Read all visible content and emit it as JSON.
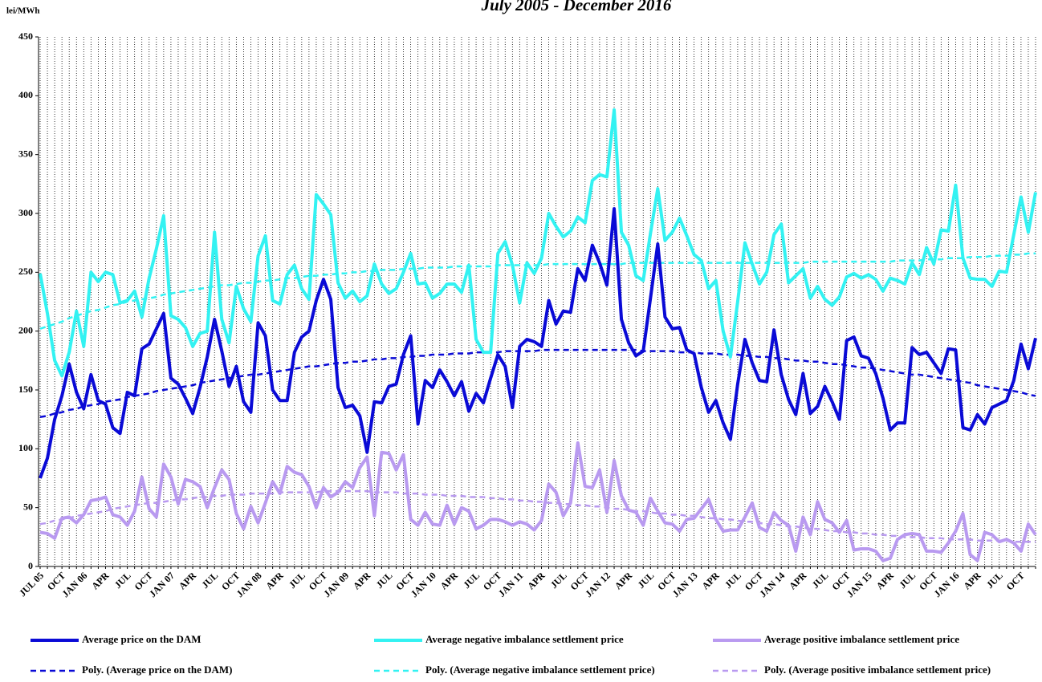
{
  "chart_data": {
    "type": "line",
    "title": "July 2005 - December 2016",
    "y_label": "lei/MWh",
    "categories": [
      "JUL 05",
      null,
      null,
      "OCT",
      null,
      null,
      "JAN 06",
      null,
      null,
      "APR",
      null,
      null,
      "JUL",
      null,
      null,
      "OCT",
      null,
      null,
      "JAN 07",
      null,
      null,
      "APR",
      null,
      null,
      "JUL",
      null,
      null,
      "OCT",
      null,
      null,
      "JAN 08",
      null,
      null,
      "APR",
      null,
      null,
      "JUL",
      null,
      null,
      "OCT",
      null,
      null,
      "JAN 09",
      null,
      null,
      "APR",
      null,
      null,
      "JUL",
      null,
      null,
      "OCT",
      null,
      null,
      "JAN 10",
      null,
      null,
      "APR",
      null,
      null,
      "JUL",
      null,
      null,
      "OCT",
      null,
      null,
      "JAN 11",
      null,
      null,
      "APR",
      null,
      null,
      "JUL",
      null,
      null,
      "OCT",
      null,
      null,
      "JAN 12",
      null,
      null,
      "APR",
      null,
      null,
      "JUL",
      null,
      null,
      "OCT",
      null,
      null,
      "JAN 13",
      null,
      null,
      "APR",
      null,
      null,
      "JUL",
      null,
      null,
      "OCT",
      null,
      null,
      "JAN 14",
      null,
      null,
      "APR",
      null,
      null,
      "JUL",
      null,
      null,
      "OCT",
      null,
      null,
      "JAN 15",
      null,
      null,
      "APR",
      null,
      null,
      "JUL",
      null,
      null,
      "OCT",
      null,
      null,
      "JAN 16",
      null,
      null,
      "APR",
      null,
      null,
      "JUL",
      null,
      null,
      "OCT",
      null,
      null
    ],
    "ylim": [
      0,
      450
    ],
    "yticks": [
      0,
      50,
      100,
      150,
      200,
      250,
      300,
      350,
      400,
      450
    ],
    "grid": "x",
    "series": [
      {
        "name": "Average price on the DAM",
        "color": "#0a0ad6",
        "dashed": false,
        "values": [
          75,
          92,
          125,
          145,
          172,
          148,
          134,
          163,
          141,
          138,
          118,
          113,
          148,
          145,
          185,
          189,
          202,
          215,
          160,
          155,
          143,
          130,
          152,
          178,
          210,
          183,
          153,
          170,
          140,
          131,
          207,
          196,
          150,
          141,
          141,
          182,
          195,
          200,
          226,
          244,
          227,
          152,
          135,
          137,
          128,
          97,
          140,
          139,
          153,
          155,
          180,
          196,
          121,
          158,
          152,
          167,
          157,
          145,
          157,
          132,
          147,
          139,
          160,
          180,
          170,
          135,
          187,
          193,
          191,
          187,
          226,
          206,
          217,
          216,
          253,
          243,
          273,
          258,
          239,
          304,
          210,
          190,
          179,
          183,
          228,
          274,
          212,
          202,
          203,
          184,
          181,
          152,
          131,
          141,
          122,
          108,
          155,
          193,
          173,
          158,
          157,
          201,
          163,
          142,
          129,
          164,
          130,
          136,
          153,
          140,
          125,
          192,
          195,
          179,
          177,
          164,
          143,
          116,
          122,
          122,
          186,
          180,
          182,
          173,
          164,
          185,
          184,
          118,
          116,
          129,
          121,
          135,
          138,
          141,
          158,
          189,
          168,
          194
        ]
      },
      {
        "name": "Average negative imbalance settlement price",
        "color": "#33f2f2",
        "dashed": false,
        "values": [
          249,
          215,
          175,
          162,
          182,
          217,
          187,
          250,
          242,
          250,
          248,
          224,
          226,
          234,
          212,
          245,
          270,
          298,
          213,
          210,
          203,
          187,
          198,
          200,
          284,
          210,
          190,
          238,
          219,
          208,
          264,
          281,
          226,
          223,
          248,
          256,
          236,
          227,
          316,
          308,
          299,
          241,
          228,
          234,
          225,
          230,
          257,
          240,
          232,
          236,
          250,
          266,
          240,
          241,
          228,
          232,
          240,
          240,
          233,
          256,
          193,
          182,
          182,
          266,
          276,
          256,
          224,
          258,
          249,
          262,
          300,
          289,
          280,
          285,
          297,
          292,
          328,
          333,
          331,
          388,
          284,
          273,
          247,
          243,
          283,
          321,
          277,
          284,
          296,
          281,
          265,
          260,
          236,
          243,
          200,
          178,
          225,
          275,
          257,
          240,
          250,
          282,
          291,
          241,
          247,
          253,
          228,
          238,
          227,
          222,
          229,
          246,
          249,
          245,
          248,
          244,
          234,
          245,
          243,
          240,
          258,
          248,
          271,
          257,
          286,
          285,
          324,
          262,
          245,
          244,
          244,
          238,
          251,
          250,
          282,
          314,
          284,
          318
        ]
      },
      {
        "name": "Average positive imbalance settlement price",
        "color": "#b99af0",
        "dashed": false,
        "values": [
          29,
          28,
          24,
          41,
          42,
          37,
          44,
          56,
          57,
          59,
          44,
          42,
          35,
          47,
          76,
          49,
          42,
          87,
          76,
          53,
          74,
          72,
          68,
          50,
          67,
          82,
          74,
          45,
          32,
          51,
          37,
          54,
          72,
          62,
          85,
          80,
          78,
          68,
          50,
          67,
          59,
          63,
          72,
          67,
          84,
          93,
          43,
          97,
          96,
          82,
          95,
          40,
          35,
          46,
          36,
          35,
          52,
          36,
          50,
          47,
          32,
          35,
          40,
          40,
          38,
          35,
          38,
          36,
          31,
          39,
          70,
          63,
          43,
          54,
          105,
          68,
          67,
          82,
          46,
          90,
          60,
          48,
          46,
          35,
          58,
          47,
          37,
          36,
          30,
          40,
          41,
          49,
          57,
          40,
          30,
          31,
          31,
          42,
          54,
          33,
          30,
          46,
          39,
          35,
          13,
          42,
          27,
          55,
          40,
          37,
          29,
          39,
          14,
          15,
          15,
          13,
          5,
          7,
          23,
          27,
          28,
          27,
          13,
          13,
          12,
          20,
          30,
          45,
          10,
          5,
          29,
          27,
          21,
          23,
          20,
          13,
          36,
          27
        ]
      },
      {
        "name": "Poly. (Average price on the DAM)",
        "color": "#0a0ad6",
        "dashed": true,
        "values": [
          127,
          128,
          130,
          131,
          133,
          134,
          136,
          137,
          138,
          140,
          141,
          142,
          144,
          145,
          146,
          147,
          149,
          150,
          151,
          152,
          153,
          154,
          156,
          157,
          158,
          159,
          160,
          161,
          162,
          163,
          163,
          164,
          165,
          166,
          167,
          168,
          169,
          170,
          170,
          171,
          172,
          173,
          173,
          174,
          174,
          175,
          176,
          176,
          177,
          177,
          178,
          178,
          179,
          179,
          180,
          180,
          180,
          181,
          181,
          181,
          182,
          182,
          182,
          182,
          183,
          183,
          183,
          183,
          183,
          184,
          184,
          184,
          184,
          184,
          184,
          184,
          184,
          184,
          184,
          184,
          184,
          184,
          184,
          183,
          183,
          183,
          183,
          183,
          182,
          182,
          182,
          181,
          181,
          181,
          180,
          180,
          180,
          179,
          179,
          178,
          178,
          177,
          177,
          176,
          175,
          175,
          174,
          174,
          173,
          172,
          172,
          171,
          170,
          169,
          169,
          168,
          167,
          166,
          165,
          164,
          163,
          163,
          162,
          161,
          160,
          159,
          158,
          157,
          156,
          154,
          153,
          152,
          151,
          150,
          149,
          148,
          146,
          145
        ]
      },
      {
        "name": "Poly. (Average negative imbalance settlement price)",
        "color": "#33f2f2",
        "dashed": true,
        "values": [
          202,
          204,
          206,
          208,
          211,
          213,
          215,
          217,
          218,
          220,
          222,
          223,
          225,
          226,
          227,
          228,
          229,
          231,
          232,
          233,
          234,
          235,
          236,
          237,
          238,
          239,
          239,
          240,
          241,
          241,
          242,
          243,
          243,
          244,
          245,
          245,
          246,
          247,
          247,
          248,
          248,
          249,
          249,
          250,
          250,
          251,
          251,
          252,
          252,
          252,
          253,
          253,
          253,
          254,
          254,
          254,
          254,
          255,
          255,
          255,
          255,
          255,
          255,
          256,
          256,
          256,
          256,
          256,
          256,
          256,
          257,
          257,
          257,
          257,
          257,
          257,
          257,
          257,
          257,
          257,
          257,
          258,
          258,
          258,
          258,
          258,
          258,
          258,
          258,
          258,
          258,
          258,
          258,
          258,
          258,
          258,
          258,
          258,
          258,
          258,
          258,
          258,
          258,
          258,
          258,
          258,
          259,
          259,
          259,
          259,
          259,
          259,
          259,
          259,
          259,
          259,
          259,
          259,
          260,
          260,
          260,
          260,
          261,
          261,
          261,
          262,
          262,
          262,
          263,
          263,
          263,
          264,
          264,
          264,
          265,
          265,
          266,
          266
        ]
      },
      {
        "name": "Poly. (Average positive imbalance settlement price)",
        "color": "#b99af0",
        "dashed": true,
        "values": [
          36,
          37,
          39,
          40,
          41,
          43,
          44,
          45,
          46,
          47,
          49,
          50,
          51,
          52,
          53,
          54,
          54,
          55,
          56,
          57,
          57,
          58,
          59,
          59,
          60,
          60,
          61,
          61,
          61,
          62,
          62,
          62,
          62,
          63,
          63,
          63,
          63,
          63,
          63,
          64,
          64,
          64,
          64,
          64,
          64,
          64,
          63,
          63,
          63,
          63,
          62,
          62,
          62,
          61,
          61,
          61,
          60,
          60,
          60,
          59,
          59,
          59,
          58,
          58,
          57,
          57,
          56,
          56,
          55,
          55,
          54,
          54,
          53,
          53,
          52,
          52,
          51,
          51,
          50,
          49,
          49,
          48,
          47,
          47,
          46,
          45,
          45,
          44,
          44,
          43,
          43,
          42,
          41,
          41,
          40,
          40,
          39,
          38,
          38,
          37,
          36,
          36,
          35,
          34,
          34,
          33,
          32,
          32,
          31,
          30,
          30,
          29,
          29,
          28,
          28,
          27,
          27,
          26,
          26,
          25,
          25,
          25,
          24,
          24,
          24,
          23,
          23,
          23,
          23,
          22,
          22,
          22,
          22,
          22,
          21,
          21,
          21,
          21
        ]
      }
    ]
  }
}
